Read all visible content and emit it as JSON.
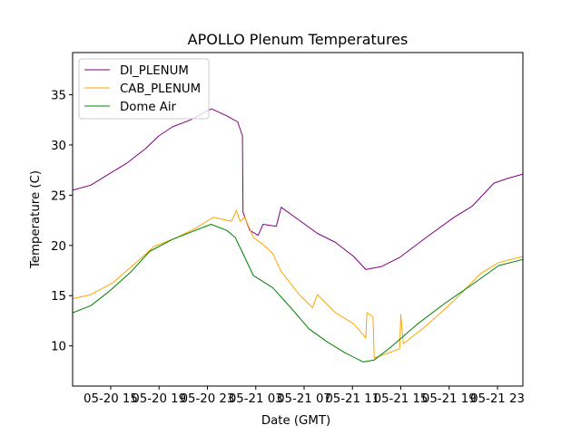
{
  "chart_data": {
    "type": "line",
    "title": "APOLLO Plenum Temperatures",
    "xlabel": "Date (GMT)",
    "ylabel": "Temperature (C)",
    "x_units": "hours since 05-20 00:00 GMT",
    "xlim": [
      11.85,
      49.1
    ],
    "ylim": [
      6.0,
      39.2
    ],
    "grid": false,
    "legend_position": "top-left",
    "x_ticks": [
      {
        "value": 15,
        "label": "05-20 15"
      },
      {
        "value": 19,
        "label": "05-20 19"
      },
      {
        "value": 23,
        "label": "05-20 23"
      },
      {
        "value": 27,
        "label": "05-21 03"
      },
      {
        "value": 31,
        "label": "05-21 07"
      },
      {
        "value": 35,
        "label": "05-21 11"
      },
      {
        "value": 39,
        "label": "05-21 15"
      },
      {
        "value": 43,
        "label": "05-21 19"
      },
      {
        "value": 47,
        "label": "05-21 23"
      }
    ],
    "y_ticks": [
      {
        "value": 10,
        "label": "10"
      },
      {
        "value": 15,
        "label": "15"
      },
      {
        "value": 20,
        "label": "20"
      },
      {
        "value": 25,
        "label": "25"
      },
      {
        "value": 30,
        "label": "30"
      },
      {
        "value": 35,
        "label": "35"
      }
    ],
    "series": [
      {
        "name": "DI_PLENUM",
        "color": "#800080",
        "x": [
          11.85,
          13.35,
          14.85,
          16.35,
          17.85,
          18.98,
          20.1,
          21.6,
          23.33,
          24.6,
          25.5,
          25.9,
          25.95,
          26.5,
          27.2,
          27.6,
          28.7,
          29.1,
          30.6,
          32.1,
          33.6,
          35.1,
          36.1,
          37.4,
          38.9,
          41.1,
          43.4,
          44.9,
          46.7,
          47.9,
          49.1
        ],
        "y": [
          25.5,
          26.0,
          27.1,
          28.2,
          29.6,
          30.9,
          31.8,
          32.5,
          33.6,
          32.9,
          32.3,
          30.9,
          23.3,
          21.5,
          21.0,
          22.1,
          21.9,
          23.8,
          22.5,
          21.2,
          20.3,
          18.9,
          17.6,
          17.9,
          18.8,
          20.8,
          22.8,
          23.9,
          26.2,
          26.7,
          27.1
        ]
      },
      {
        "name": "CAB_PLENUM",
        "color": "#ffa500",
        "x": [
          11.85,
          13.35,
          15.2,
          17.1,
          18.6,
          20.5,
          22.0,
          23.5,
          25.0,
          25.4,
          25.7,
          26.1,
          26.8,
          27.6,
          28.4,
          29.1,
          30.6,
          31.7,
          32.1,
          33.6,
          35.1,
          36.1,
          36.2,
          36.7,
          36.8,
          38.9,
          39.0,
          39.2,
          41.1,
          43.4,
          45.6,
          47.1,
          49.1
        ],
        "y": [
          14.7,
          15.1,
          16.3,
          18.3,
          19.9,
          20.8,
          21.7,
          22.8,
          22.4,
          23.5,
          22.4,
          22.8,
          20.8,
          20.1,
          19.2,
          17.4,
          15.1,
          13.8,
          15.1,
          13.3,
          12.2,
          10.8,
          13.3,
          12.9,
          8.8,
          9.7,
          13.1,
          10.2,
          12.0,
          14.5,
          17.2,
          18.3,
          18.9
        ]
      },
      {
        "name": "Dome Air",
        "color": "#008000",
        "x": [
          11.85,
          13.35,
          14.85,
          16.7,
          18.2,
          20.1,
          22.0,
          23.3,
          24.6,
          25.3,
          26.1,
          26.8,
          28.4,
          29.9,
          31.4,
          32.9,
          34.4,
          35.9,
          36.8,
          38.1,
          40.4,
          42.6,
          44.9,
          47.1,
          49.1
        ],
        "y": [
          13.3,
          14.0,
          15.4,
          17.4,
          19.4,
          20.6,
          21.5,
          22.1,
          21.5,
          20.8,
          18.8,
          17.0,
          15.8,
          13.8,
          11.7,
          10.4,
          9.3,
          8.4,
          8.6,
          9.8,
          12.2,
          14.2,
          16.1,
          18.0,
          18.6
        ]
      }
    ]
  }
}
